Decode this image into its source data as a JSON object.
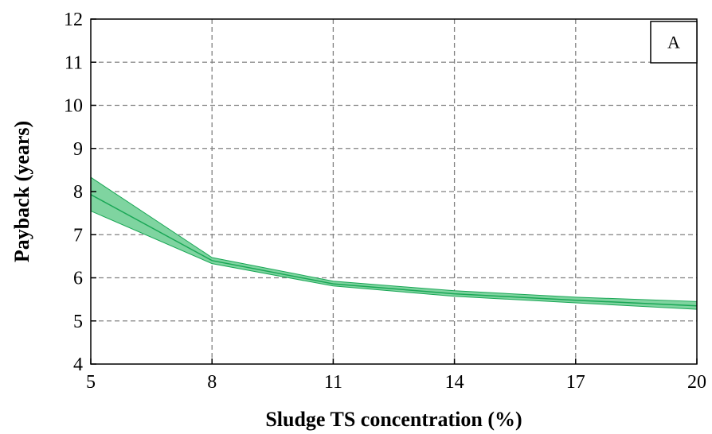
{
  "chart_data": {
    "type": "line",
    "title": "",
    "panel_label": "A",
    "xlabel": "Sludge TS concentration (%)",
    "ylabel": "Payback (years)",
    "xlim": [
      5,
      20
    ],
    "ylim": [
      4,
      12
    ],
    "x_ticks": [
      5,
      8,
      11,
      14,
      17,
      20
    ],
    "y_ticks": [
      4,
      5,
      6,
      7,
      8,
      9,
      10,
      11,
      12
    ],
    "grid": true,
    "legend": "none",
    "series": [
      {
        "x": [
          5,
          8,
          11,
          14,
          17,
          20
        ],
        "values": [
          7.93,
          6.4,
          5.86,
          5.63,
          5.48,
          5.35
        ],
        "lower": [
          7.55,
          6.33,
          5.81,
          5.57,
          5.42,
          5.27
        ],
        "upper": [
          8.33,
          6.47,
          5.92,
          5.7,
          5.55,
          5.45
        ],
        "color": "#1aa756",
        "band_color": "#7fd4a0"
      }
    ]
  }
}
